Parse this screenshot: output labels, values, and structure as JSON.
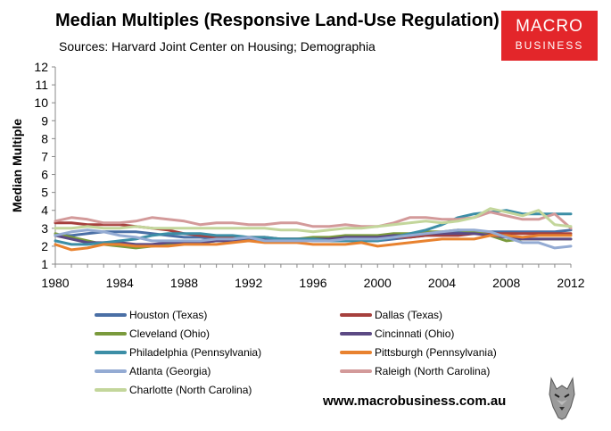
{
  "header": {
    "title": "Median Multiples (Responsive Land-Use Regulation)",
    "subtitle": "Sources: Harvard Joint Center on Housing; Demographia"
  },
  "logo": {
    "line1": "MACRO",
    "line2": "BUSINESS"
  },
  "footer": {
    "url": "www.macrobusiness.com.au"
  },
  "chart_data": {
    "type": "line",
    "title": "Median Multiples (Responsive Land-Use Regulation)",
    "xlabel": "",
    "ylabel": "Median Multiple",
    "ylim": [
      1,
      12
    ],
    "xlim": [
      1980,
      2012
    ],
    "yticks": [
      1,
      2,
      3,
      4,
      5,
      6,
      7,
      8,
      9,
      10,
      11,
      12
    ],
    "xticks": [
      1980,
      1984,
      1988,
      1992,
      1996,
      2000,
      2004,
      2008,
      2012
    ],
    "grid": false,
    "legend": "bottom",
    "x": [
      1980,
      1981,
      1982,
      1983,
      1984,
      1985,
      1986,
      1987,
      1988,
      1989,
      1990,
      1991,
      1992,
      1993,
      1994,
      1995,
      1996,
      1997,
      1998,
      1999,
      2000,
      2001,
      2002,
      2003,
      2004,
      2005,
      2006,
      2007,
      2008,
      2009,
      2010,
      2011,
      2012
    ],
    "series": [
      {
        "name": "Houston (Texas)",
        "color": "#4a6fa5",
        "values": [
          2.6,
          2.6,
          2.7,
          2.8,
          2.8,
          2.8,
          2.7,
          2.6,
          2.5,
          2.5,
          2.4,
          2.4,
          2.4,
          2.4,
          2.4,
          2.4,
          2.3,
          2.3,
          2.3,
          2.3,
          2.3,
          2.4,
          2.5,
          2.6,
          2.7,
          2.8,
          2.8,
          2.8,
          2.8,
          2.8,
          2.8,
          2.8,
          2.9
        ]
      },
      {
        "name": "Dallas (Texas)",
        "color": "#a6403d",
        "values": [
          3.3,
          3.3,
          3.2,
          3.2,
          3.2,
          3.1,
          3.0,
          2.9,
          2.7,
          2.6,
          2.5,
          2.5,
          2.5,
          2.5,
          2.4,
          2.4,
          2.4,
          2.4,
          2.4,
          2.4,
          2.4,
          2.5,
          2.5,
          2.6,
          2.6,
          2.6,
          2.7,
          2.7,
          2.7,
          2.7,
          2.7,
          2.7,
          2.7
        ]
      },
      {
        "name": "Cleveland (Ohio)",
        "color": "#7a9a3c",
        "values": [
          2.7,
          2.5,
          2.3,
          2.1,
          2.0,
          1.9,
          2.0,
          2.1,
          2.2,
          2.2,
          2.3,
          2.3,
          2.3,
          2.4,
          2.4,
          2.4,
          2.5,
          2.5,
          2.6,
          2.6,
          2.6,
          2.7,
          2.7,
          2.8,
          2.8,
          2.9,
          2.8,
          2.6,
          2.3,
          2.4,
          2.4,
          2.4,
          2.4
        ]
      },
      {
        "name": "Cincinnati (Ohio)",
        "color": "#5c4a84",
        "values": [
          2.6,
          2.4,
          2.2,
          2.2,
          2.2,
          2.1,
          2.1,
          2.2,
          2.2,
          2.2,
          2.3,
          2.3,
          2.3,
          2.4,
          2.4,
          2.4,
          2.4,
          2.4,
          2.5,
          2.5,
          2.5,
          2.6,
          2.6,
          2.7,
          2.7,
          2.7,
          2.7,
          2.6,
          2.5,
          2.4,
          2.4,
          2.4,
          2.4
        ]
      },
      {
        "name": "Philadelphia (Pennsylvania)",
        "color": "#3c8ea6",
        "values": [
          2.3,
          2.1,
          2.1,
          2.2,
          2.3,
          2.4,
          2.6,
          2.7,
          2.7,
          2.7,
          2.6,
          2.6,
          2.5,
          2.5,
          2.4,
          2.4,
          2.4,
          2.3,
          2.3,
          2.3,
          2.3,
          2.5,
          2.7,
          2.9,
          3.2,
          3.6,
          3.8,
          3.9,
          4.0,
          3.8,
          3.8,
          3.8,
          3.8
        ]
      },
      {
        "name": "Pittsburgh (Pennsylvania)",
        "color": "#e8822f",
        "values": [
          2.1,
          1.8,
          1.9,
          2.1,
          2.1,
          2.0,
          2.0,
          2.0,
          2.1,
          2.1,
          2.1,
          2.2,
          2.3,
          2.2,
          2.2,
          2.2,
          2.1,
          2.1,
          2.1,
          2.2,
          2.0,
          2.1,
          2.2,
          2.3,
          2.4,
          2.4,
          2.4,
          2.6,
          2.6,
          2.5,
          2.6,
          2.6,
          2.6
        ]
      },
      {
        "name": "Atlanta (Georgia)",
        "color": "#94abd3",
        "values": [
          2.6,
          2.8,
          2.9,
          2.8,
          2.6,
          2.5,
          2.3,
          2.3,
          2.3,
          2.3,
          2.4,
          2.4,
          2.5,
          2.3,
          2.3,
          2.3,
          2.3,
          2.3,
          2.4,
          2.4,
          2.4,
          2.5,
          2.6,
          2.7,
          2.8,
          2.9,
          2.9,
          2.8,
          2.5,
          2.2,
          2.2,
          1.9,
          2.0
        ]
      },
      {
        "name": "Raleigh (North Carolina)",
        "color": "#d39a9a",
        "values": [
          3.4,
          3.6,
          3.5,
          3.3,
          3.3,
          3.4,
          3.6,
          3.5,
          3.4,
          3.2,
          3.3,
          3.3,
          3.2,
          3.2,
          3.3,
          3.3,
          3.1,
          3.1,
          3.2,
          3.1,
          3.1,
          3.3,
          3.6,
          3.6,
          3.5,
          3.5,
          3.6,
          3.9,
          3.7,
          3.5,
          3.5,
          3.8,
          3.0
        ]
      },
      {
        "name": "Charlotte (North Carolina)",
        "color": "#c3d69b",
        "values": [
          3.0,
          3.0,
          3.1,
          3.0,
          3.0,
          3.1,
          3.0,
          3.0,
          3.0,
          3.0,
          3.0,
          3.0,
          3.0,
          3.0,
          2.9,
          2.9,
          2.8,
          2.9,
          3.0,
          3.0,
          3.1,
          3.2,
          3.3,
          3.4,
          3.3,
          3.4,
          3.6,
          4.1,
          3.9,
          3.7,
          4.0,
          3.2,
          3.1
        ]
      }
    ]
  }
}
